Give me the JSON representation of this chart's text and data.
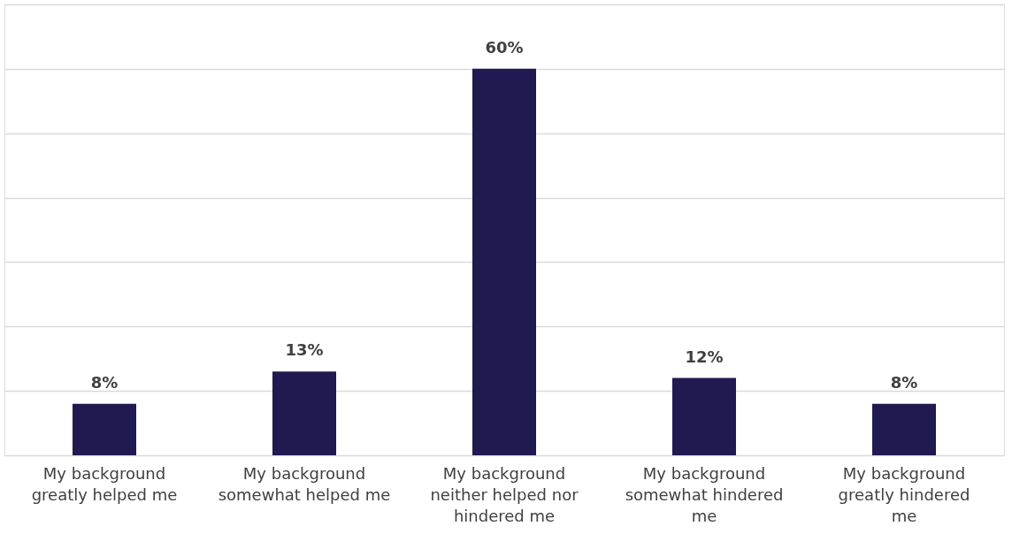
{
  "chart_data": {
    "type": "bar",
    "categories": [
      "My background greatly helped me",
      "My background somewhat helped me",
      "My background neither helped nor hindered me",
      "My background somewhat hindered me",
      "My background greatly hindered me"
    ],
    "values": [
      8,
      13,
      60,
      12,
      8
    ],
    "color": "#201a50",
    "value_labels": [
      "8%",
      "13%",
      "60%",
      "12%",
      "8%"
    ],
    "ylim": [
      0,
      70
    ],
    "yticks": [
      {
        "value": 0,
        "label": null
      },
      {
        "value": 10,
        "label": null
      },
      {
        "value": 20,
        "label": null
      },
      {
        "value": 30,
        "label": null
      },
      {
        "value": 40,
        "label": null
      },
      {
        "value": 50,
        "label": null
      },
      {
        "value": 60,
        "label": null
      },
      {
        "value": 70,
        "label": null
      }
    ],
    "grid": "y",
    "tick_labels": "x"
  }
}
